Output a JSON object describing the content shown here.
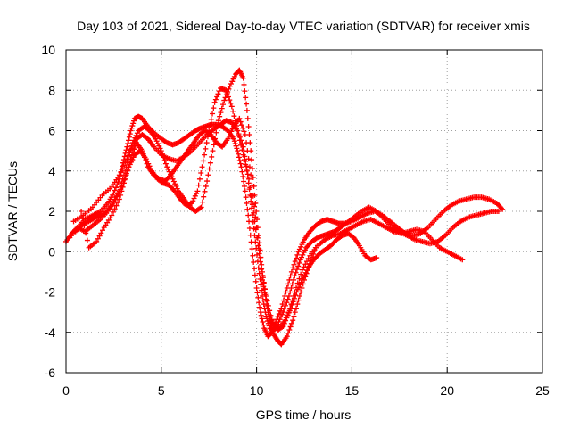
{
  "chart_data": {
    "type": "scatter",
    "title": "Day 103 of 2021, Sidereal Day-to-day VTEC variation (SDTVAR) for receiver xmis",
    "xlabel": "GPS time / hours",
    "ylabel": "SDTVAR / TECUs",
    "xlim": [
      0,
      25
    ],
    "ylim": [
      -6,
      10
    ],
    "xticks": [
      "0",
      "5",
      "10",
      "15",
      "20",
      "25"
    ],
    "yticks": [
      "-6",
      "-4",
      "-2",
      "0",
      "2",
      "4",
      "6",
      "8",
      "10"
    ],
    "grid": true,
    "marker": "plus",
    "color": "#ff0000",
    "series": [
      {
        "x": [
          0.0,
          0.3,
          0.6,
          1.0,
          1.4,
          1.8,
          2.2,
          2.5,
          2.8,
          3.0,
          3.2,
          3.4,
          3.6,
          3.8,
          4.0,
          4.3,
          4.6,
          5.0,
          5.3,
          5.6,
          5.9,
          6.2,
          6.5,
          6.8,
          7.0,
          7.3,
          7.6,
          7.9,
          8.2,
          8.5,
          8.8,
          9.0,
          9.2,
          9.4,
          9.6,
          9.8,
          10.0,
          10.2,
          10.4,
          10.6,
          10.8,
          11.0,
          11.3,
          11.6,
          11.9,
          12.2,
          12.5,
          12.8,
          13.1,
          13.4,
          13.7,
          14.0,
          14.3,
          14.6,
          15.0,
          15.4,
          15.8,
          16.2,
          16.6,
          17.0,
          17.4,
          17.8,
          18.2,
          18.6,
          19.0,
          19.4,
          19.8,
          20.2,
          20.6,
          21.0,
          21.4,
          21.8,
          22.2,
          22.6,
          22.9
        ],
        "y": [
          0.5,
          0.9,
          1.2,
          1.6,
          1.8,
          2.0,
          2.4,
          2.9,
          3.6,
          4.4,
          5.2,
          6.0,
          6.6,
          6.7,
          6.6,
          6.2,
          5.9,
          5.6,
          5.4,
          5.3,
          5.4,
          5.6,
          5.8,
          6.0,
          6.1,
          6.2,
          6.3,
          6.3,
          6.2,
          6.0,
          5.6,
          5.0,
          4.2,
          3.0,
          1.5,
          -0.2,
          -1.8,
          -3.0,
          -3.8,
          -4.2,
          -4.0,
          -3.5,
          -2.8,
          -1.8,
          -0.8,
          0.0,
          0.6,
          1.0,
          1.3,
          1.5,
          1.6,
          1.5,
          1.4,
          1.4,
          1.5,
          1.7,
          1.9,
          2.0,
          1.8,
          1.5,
          1.2,
          0.9,
          0.8,
          0.9,
          1.2,
          1.6,
          2.0,
          2.3,
          2.5,
          2.6,
          2.7,
          2.7,
          2.6,
          2.4,
          2.1
        ]
      },
      {
        "x": [
          0.5,
          0.8,
          1.2,
          1.6,
          2.0,
          2.4,
          2.8,
          3.1,
          3.4,
          3.7,
          4.0,
          4.3,
          4.6,
          5.0,
          5.4,
          5.8,
          6.2,
          6.6,
          7.0,
          7.4,
          7.8,
          8.1,
          8.4,
          8.7,
          9.0,
          9.3,
          9.5,
          9.7,
          9.9,
          10.1,
          10.3,
          10.5,
          10.7,
          10.9,
          11.1,
          11.4,
          11.7,
          12.0,
          12.3,
          12.6,
          12.9,
          13.2,
          13.5,
          13.8,
          14.1,
          14.4,
          14.7,
          15.1,
          15.5,
          15.9,
          16.3,
          16.7,
          17.1,
          17.5,
          17.9,
          18.3,
          18.7,
          19.1,
          19.5,
          19.9,
          20.3,
          20.7,
          21.1,
          21.5,
          21.9,
          22.3,
          22.7
        ],
        "y": [
          1.0,
          1.3,
          1.5,
          1.7,
          1.9,
          2.3,
          3.0,
          4.0,
          5.0,
          5.6,
          5.8,
          5.6,
          5.2,
          4.8,
          4.6,
          4.5,
          4.7,
          5.0,
          5.4,
          5.8,
          6.1,
          6.3,
          6.5,
          6.4,
          6.0,
          5.2,
          4.0,
          2.5,
          0.8,
          -0.8,
          -2.2,
          -3.2,
          -3.8,
          -3.9,
          -3.6,
          -3.0,
          -2.2,
          -1.2,
          -0.4,
          0.2,
          0.5,
          0.7,
          0.8,
          0.9,
          1.0,
          1.2,
          1.4,
          1.7,
          2.0,
          2.2,
          2.0,
          1.6,
          1.2,
          1.0,
          0.8,
          0.6,
          0.5,
          0.4,
          0.5,
          0.8,
          1.2,
          1.5,
          1.7,
          1.8,
          1.9,
          2.0,
          2.0
        ]
      },
      {
        "x": [
          0.2,
          0.6,
          1.0,
          1.4,
          1.8,
          2.2,
          2.6,
          3.0,
          3.3,
          3.6,
          3.9,
          4.2,
          4.5,
          4.8,
          5.1,
          5.4,
          5.7,
          6.0,
          6.3,
          6.6,
          6.9,
          7.2,
          7.5,
          7.8,
          8.1,
          8.4,
          8.7,
          9.0,
          9.3,
          9.6,
          9.9,
          10.2,
          10.5,
          10.8,
          11.1,
          11.4,
          11.7,
          12.0,
          12.4,
          12.8,
          13.2,
          13.6,
          14.0,
          14.4,
          14.8,
          15.2,
          15.6,
          16.0,
          16.4,
          16.8,
          17.2,
          17.6,
          18.0,
          18.4,
          18.8,
          19.2,
          19.6,
          20.0,
          20.4,
          20.8
        ],
        "y": [
          0.7,
          1.2,
          1.0,
          1.3,
          1.6,
          2.0,
          2.6,
          3.4,
          4.2,
          4.8,
          5.0,
          4.6,
          4.0,
          3.6,
          3.4,
          3.3,
          3.0,
          2.6,
          2.3,
          2.4,
          3.0,
          4.5,
          6.0,
          7.4,
          8.1,
          8.0,
          7.2,
          6.0,
          4.8,
          3.6,
          1.5,
          -0.5,
          -2.2,
          -3.4,
          -3.9,
          -3.7,
          -3.0,
          -2.0,
          -0.9,
          -0.2,
          0.3,
          0.6,
          0.8,
          0.9,
          1.1,
          1.3,
          1.5,
          1.6,
          1.4,
          1.2,
          1.0,
          0.9,
          1.0,
          1.1,
          1.0,
          0.6,
          0.2,
          0.0,
          -0.2,
          -0.4
        ]
      },
      {
        "x": [
          0.4,
          0.9,
          1.4,
          1.9,
          2.4,
          2.8,
          3.2,
          3.5,
          3.8,
          4.1,
          4.4,
          4.7,
          5.0,
          5.3,
          5.6,
          5.9,
          6.2,
          6.5,
          6.8,
          7.1,
          7.4,
          7.7,
          8.0,
          8.3,
          8.6,
          8.9,
          9.1,
          9.3,
          9.5,
          9.7,
          9.9,
          10.1,
          10.3,
          10.5,
          10.7,
          10.9,
          11.1,
          11.3,
          11.6,
          11.9,
          12.2,
          12.5,
          12.8,
          13.1
        ],
        "y": [
          1.5,
          1.8,
          2.2,
          2.8,
          3.2,
          3.8,
          4.6,
          5.4,
          6.0,
          6.2,
          6.0,
          5.6,
          5.0,
          4.2,
          3.6,
          3.0,
          2.6,
          2.2,
          2.0,
          2.2,
          3.5,
          5.0,
          6.5,
          7.5,
          8.2,
          8.8,
          9.0,
          8.6,
          7.0,
          5.0,
          2.8,
          0.8,
          -1.0,
          -2.4,
          -3.4,
          -4.1,
          -4.4,
          -4.6,
          -4.2,
          -3.4,
          -2.4,
          -1.4,
          -0.6,
          0.2
        ]
      },
      {
        "x": [
          0.8,
          1.2,
          1.6,
          2.0,
          2.4,
          2.8,
          3.1,
          3.4,
          3.7,
          4.0,
          4.3,
          4.6,
          4.9,
          5.2,
          5.5,
          5.8,
          6.1,
          6.4,
          6.7,
          7.0,
          7.3,
          7.6,
          7.9,
          8.2,
          8.5,
          8.8,
          9.1,
          9.4,
          9.7,
          10.0,
          10.3,
          10.6,
          10.9,
          11.2,
          11.5,
          11.8,
          12.1,
          12.4,
          12.7,
          13.0,
          13.3,
          13.6,
          13.9,
          14.2,
          14.5,
          14.8,
          15.1,
          15.4,
          15.7,
          16.0,
          16.3
        ],
        "y": [
          2.0,
          0.2,
          0.5,
          1.2,
          1.8,
          2.6,
          3.6,
          4.6,
          5.4,
          5.0,
          4.2,
          3.8,
          3.6,
          3.5,
          3.8,
          4.2,
          4.6,
          5.0,
          5.4,
          5.8,
          6.0,
          5.8,
          5.4,
          5.2,
          5.6,
          6.2,
          6.6,
          5.8,
          3.8,
          1.2,
          -1.4,
          -3.0,
          -3.6,
          -3.8,
          -3.4,
          -2.8,
          -2.0,
          -1.4,
          -0.8,
          -0.4,
          -0.1,
          0.1,
          0.3,
          0.6,
          0.8,
          0.9,
          0.7,
          0.3,
          -0.2,
          -0.4,
          -0.3
        ]
      }
    ]
  }
}
